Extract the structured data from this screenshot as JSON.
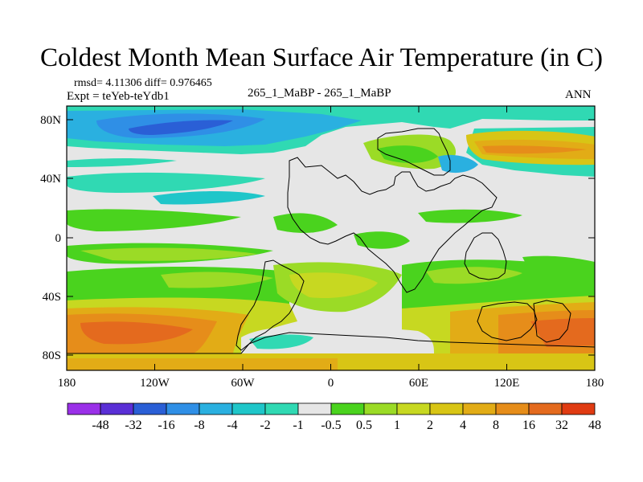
{
  "title": "Coldest Month Mean Surface Air Temperature (in C)",
  "stats": "rmsd= 4.11306 diff= 0.976465",
  "expt": "Expt = teYeb-teYdb1",
  "center_label": "265_1_MaBP - 265_1_MaBP",
  "season": "ANN",
  "y_ticks": [
    "80N",
    "40N",
    "0",
    "40S",
    "80S"
  ],
  "x_ticks": [
    "180",
    "120W",
    "60W",
    "0",
    "60E",
    "120E",
    "180"
  ],
  "colorbar": {
    "colors": [
      "#9a30e8",
      "#5a2fd6",
      "#2a5fd6",
      "#2f8fe6",
      "#2ab0e0",
      "#1fc6c9",
      "#30d9b3",
      "#e6e6e6",
      "#4ad31e",
      "#9bdb26",
      "#c7d821",
      "#d8c515",
      "#e2ac16",
      "#e68d1a",
      "#e46a1e",
      "#e03b12"
    ],
    "labels": [
      "-48",
      "-32",
      "-16",
      "-8",
      "-4",
      "-2",
      "-1",
      "-0.5",
      "0.5",
      "1",
      "2",
      "4",
      "8",
      "16",
      "32",
      "48"
    ]
  }
}
